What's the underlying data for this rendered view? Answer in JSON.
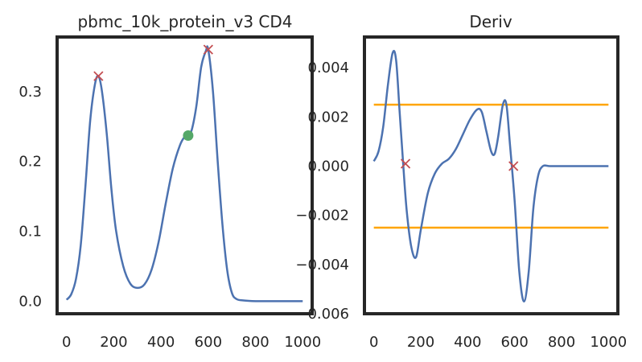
{
  "chart_data": [
    {
      "type": "line",
      "title": "pbmc_10k_protein_v3 CD4",
      "xlabel": "",
      "ylabel": "",
      "xlim": [
        -40,
        1040
      ],
      "ylim": [
        -0.018,
        0.378
      ],
      "xticks": [
        0,
        200,
        400,
        600,
        800,
        1000
      ],
      "xtick_labels": [
        "0",
        "200",
        "400",
        "600",
        "800",
        "1000"
      ],
      "yticks": [
        0.0,
        0.1,
        0.2,
        0.3
      ],
      "ytick_labels": [
        "0.0",
        "0.1",
        "0.2",
        "0.3"
      ],
      "grid": false,
      "series": [
        {
          "color": "#4c72b0",
          "x": [
            0,
            20,
            40,
            60,
            80,
            100,
            120,
            135,
            150,
            170,
            190,
            210,
            240,
            270,
            300,
            330,
            360,
            390,
            420,
            450,
            480,
            500,
            515,
            530,
            550,
            570,
            590,
            600,
            620,
            640,
            660,
            680,
            700,
            720,
            750,
            800,
            850,
            900,
            950,
            1000
          ],
          "values": [
            0.002,
            0.01,
            0.032,
            0.08,
            0.165,
            0.258,
            0.31,
            0.322,
            0.3,
            0.24,
            0.16,
            0.1,
            0.05,
            0.025,
            0.019,
            0.024,
            0.045,
            0.085,
            0.14,
            0.19,
            0.223,
            0.235,
            0.237,
            0.245,
            0.28,
            0.335,
            0.358,
            0.36,
            0.3,
            0.2,
            0.11,
            0.045,
            0.012,
            0.003,
            0.001,
            0.0,
            0.0,
            0.0,
            0.0,
            0.0
          ]
        }
      ],
      "peaks": {
        "marker": "x",
        "color": "#c44e52",
        "x": [
          135,
          600
        ],
        "y": [
          0.322,
          0.36
        ]
      },
      "point": {
        "marker": "o",
        "color": "#55a868",
        "x": [
          515
        ],
        "y": [
          0.237
        ]
      }
    },
    {
      "type": "line",
      "title": "Deriv",
      "xlabel": "",
      "ylabel": "",
      "xlim": [
        -40,
        1040
      ],
      "ylim": [
        -0.006,
        0.00525
      ],
      "xticks": [
        0,
        200,
        400,
        600,
        800,
        1000
      ],
      "xtick_labels": [
        "0",
        "200",
        "400",
        "600",
        "800",
        "1000"
      ],
      "yticks": [
        0.004,
        0.002,
        0.0,
        -0.002,
        -0.004,
        -0.006
      ],
      "ytick_labels": [
        "0.004",
        "0.002",
        "0.000",
        "−0.002",
        "−0.004",
        "−0.006"
      ],
      "grid": false,
      "series": [
        {
          "color": "#4c72b0",
          "x": [
            0,
            20,
            40,
            60,
            80,
            95,
            110,
            125,
            140,
            160,
            180,
            200,
            230,
            260,
            290,
            320,
            350,
            380,
            410,
            440,
            460,
            480,
            500,
            515,
            530,
            550,
            565,
            580,
            600,
            620,
            640,
            660,
            680,
            700,
            720,
            750,
            800,
            1000
          ],
          "values": [
            0.0002,
            0.0006,
            0.0016,
            0.0033,
            0.0046,
            0.0043,
            0.0022,
            0.0001,
            -0.0018,
            -0.0033,
            -0.0037,
            -0.0026,
            -0.0011,
            -0.0003,
            0.0001,
            0.0003,
            0.0007,
            0.0013,
            0.0019,
            0.0023,
            0.0022,
            0.0014,
            0.0006,
            0.0005,
            0.0012,
            0.0025,
            0.0025,
            0.0009,
            -0.0014,
            -0.0043,
            -0.0055,
            -0.0043,
            -0.0017,
            -0.0004,
            0.0,
            0.0,
            0.0,
            0.0
          ]
        }
      ],
      "hlines": {
        "color": "#ffa500",
        "values": [
          0.0025,
          -0.0025
        ],
        "x": [
          0,
          1000
        ]
      },
      "markers": {
        "marker": "x",
        "color": "#c44e52",
        "x": [
          135,
          595
        ],
        "y": [
          0.0001,
          0.0
        ]
      }
    }
  ]
}
